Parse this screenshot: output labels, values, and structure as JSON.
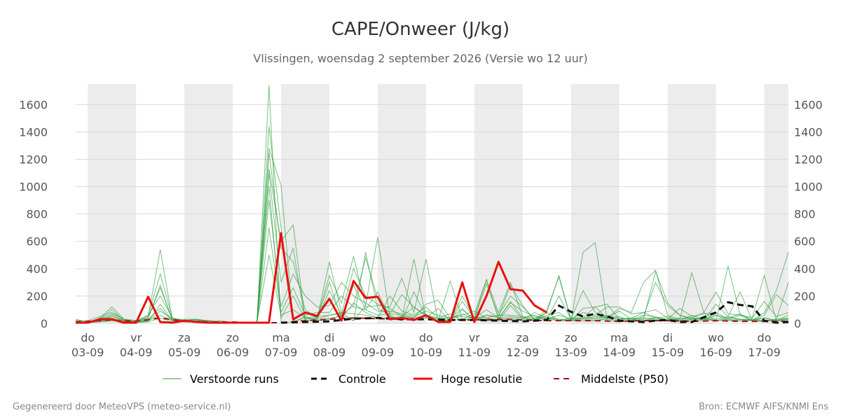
{
  "header": {
    "title": "CAPE/Onweer (J/kg)",
    "subtitle": "Vlissingen, woensdag  2 september 2026 (Versie wo 12 uur)"
  },
  "footer": {
    "left": "Gegenereerd door MeteoVPS (meteo-service.nl)",
    "right": "Bron: ECMWF AIFS/KNMI Ens"
  },
  "colors": {
    "ensemble": "#2e9e3e",
    "control": "#111111",
    "high_res": "#e8110e",
    "median": "#a01010",
    "weekend_band": "#ececec",
    "grid": "#d9d9d9"
  },
  "chart_data": {
    "type": "line",
    "x_unit": "days since 2026-09-03 00:00",
    "xlim": [
      -0.25,
      14.5
    ],
    "ylim": [
      0,
      1750
    ],
    "grid": true,
    "legend_position": "bottom",
    "y_ticks": [
      0,
      200,
      400,
      600,
      800,
      1000,
      1200,
      1400,
      1600
    ],
    "x_ticks": [
      {
        "x": 0,
        "day": "do",
        "date": "03-09"
      },
      {
        "x": 1,
        "day": "vr",
        "date": "04-09"
      },
      {
        "x": 2,
        "day": "za",
        "date": "05-09"
      },
      {
        "x": 3,
        "day": "zo",
        "date": "06-09"
      },
      {
        "x": 4,
        "day": "ma",
        "date": "07-09"
      },
      {
        "x": 5,
        "day": "di",
        "date": "08-09"
      },
      {
        "x": 6,
        "day": "wo",
        "date": "09-09"
      },
      {
        "x": 7,
        "day": "do",
        "date": "10-09"
      },
      {
        "x": 8,
        "day": "vr",
        "date": "11-09"
      },
      {
        "x": 9,
        "day": "za",
        "date": "12-09"
      },
      {
        "x": 10,
        "day": "zo",
        "date": "13-09"
      },
      {
        "x": 11,
        "day": "ma",
        "date": "14-09"
      },
      {
        "x": 12,
        "day": "di",
        "date": "15-09"
      },
      {
        "x": 13,
        "day": "wo",
        "date": "16-09"
      },
      {
        "x": 14,
        "day": "do",
        "date": "17-09"
      }
    ],
    "night_bands": [
      [
        0,
        1
      ],
      [
        2,
        3
      ],
      [
        4,
        5
      ],
      [
        6,
        7
      ],
      [
        8,
        9
      ],
      [
        10,
        11
      ],
      [
        12,
        13
      ],
      [
        14,
        14.5
      ]
    ],
    "legend": [
      {
        "key": "ensemble",
        "label": "Verstoorde runs",
        "style": "thin"
      },
      {
        "key": "control",
        "label": "Controle",
        "style": "dashed"
      },
      {
        "key": "high_res",
        "label": "Hoge resolutie",
        "style": "thick"
      },
      {
        "key": "median",
        "label": "Middelste (P50)",
        "style": "dashed"
      }
    ],
    "high_res": {
      "name": "Hoge resolutie",
      "x": [
        -0.25,
        0,
        0.25,
        0.5,
        0.75,
        1,
        1.25,
        1.5,
        1.75,
        2,
        2.25,
        2.5,
        2.75,
        3,
        3.25,
        3.5,
        3.75,
        4,
        4.25,
        4.5,
        4.75,
        5,
        5.25,
        5.5,
        5.75,
        6,
        6.25,
        6.5,
        6.75,
        7,
        7.25,
        7.5,
        7.75,
        8,
        8.25,
        8.5,
        8.75,
        9,
        9.25,
        9.5
      ],
      "values": [
        5,
        5,
        30,
        30,
        5,
        5,
        195,
        10,
        5,
        20,
        10,
        5,
        5,
        5,
        5,
        5,
        5,
        660,
        30,
        80,
        55,
        180,
        20,
        310,
        185,
        195,
        30,
        40,
        25,
        60,
        10,
        10,
        300,
        10,
        200,
        450,
        250,
        240,
        130,
        80
      ]
    },
    "control": {
      "name": "Controle",
      "x": [
        4,
        4.5,
        5,
        5.5,
        6,
        6.5,
        7,
        7.5,
        8,
        8.5,
        9,
        9.5,
        9.75,
        10,
        10.25,
        10.5,
        10.75,
        11,
        11.25,
        11.5,
        11.75,
        12,
        12.25,
        12.5,
        12.75,
        13,
        13.25,
        13.5,
        13.75,
        14,
        14.25,
        14.5
      ],
      "values": [
        5,
        10,
        15,
        35,
        40,
        30,
        30,
        25,
        25,
        20,
        15,
        25,
        130,
        85,
        50,
        70,
        50,
        20,
        15,
        10,
        20,
        25,
        10,
        10,
        45,
        80,
        155,
        135,
        125,
        20,
        5,
        10
      ]
    },
    "median": {
      "name": "Middelste (P50)",
      "x": [
        -0.25,
        0.5,
        1,
        1.5,
        2,
        2.5,
        3,
        3.5,
        4,
        4.5,
        5,
        5.5,
        6,
        6.5,
        7,
        7.5,
        8,
        8.5,
        9,
        9.5,
        10,
        10.5,
        11,
        11.5,
        12,
        12.5,
        13,
        13.5,
        14,
        14.5
      ],
      "values": [
        10,
        25,
        15,
        40,
        15,
        10,
        10,
        5,
        5,
        20,
        30,
        40,
        35,
        30,
        30,
        25,
        25,
        30,
        25,
        20,
        20,
        20,
        15,
        20,
        20,
        15,
        20,
        15,
        15,
        15
      ]
    },
    "ensemble_runs": {
      "x": [
        -0.25,
        0,
        0.25,
        0.5,
        0.75,
        1,
        1.25,
        1.5,
        1.75,
        2,
        2.25,
        2.5,
        2.75,
        3,
        3.25,
        3.5,
        3.75,
        4,
        4.25,
        4.5,
        4.75,
        5,
        5.25,
        5.5,
        5.75,
        6,
        6.25,
        6.5,
        6.75,
        7,
        7.25,
        7.5,
        7.75,
        8,
        8.25,
        8.5,
        8.75,
        9,
        9.25,
        9.5,
        9.75,
        10,
        10.25,
        10.5,
        10.75,
        11,
        11.25,
        11.5,
        11.75,
        12,
        12.25,
        12.5,
        12.75,
        13,
        13.25,
        13.5,
        13.75,
        14,
        14.25,
        14.5
      ],
      "runs": [
        [
          20,
          5,
          40,
          120,
          30,
          10,
          40,
          280,
          20,
          20,
          30,
          20,
          10,
          5,
          10,
          5,
          1740,
          5,
          10,
          50,
          20,
          30,
          60,
          20,
          520,
          110,
          60,
          20,
          230,
          50,
          30,
          20,
          200,
          40,
          320,
          80,
          300,
          50,
          20,
          80,
          20,
          20,
          520,
          590,
          20,
          10,
          20,
          30,
          380,
          150,
          60,
          40,
          80,
          20,
          420,
          60,
          20,
          10,
          30,
          300
        ],
        [
          10,
          10,
          20,
          60,
          20,
          5,
          50,
          540,
          30,
          20,
          20,
          10,
          5,
          5,
          10,
          5,
          1440,
          700,
          20,
          80,
          40,
          450,
          80,
          20,
          130,
          630,
          50,
          30,
          470,
          40,
          110,
          20,
          100,
          30,
          290,
          60,
          200,
          120,
          30,
          100,
          340,
          20,
          40,
          120,
          40,
          50,
          20,
          50,
          300,
          130,
          60,
          30,
          20,
          140,
          50,
          230,
          20,
          80,
          240,
          520
        ],
        [
          30,
          10,
          30,
          100,
          20,
          10,
          60,
          360,
          40,
          20,
          20,
          20,
          10,
          5,
          10,
          5,
          1280,
          1010,
          10,
          40,
          30,
          240,
          60,
          130,
          480,
          180,
          70,
          210,
          120,
          50,
          20,
          20,
          160,
          40,
          100,
          40,
          150,
          90,
          50,
          30,
          200,
          30,
          80,
          60,
          120,
          120,
          70,
          80,
          100,
          40,
          20,
          60,
          30,
          20,
          40,
          70,
          20,
          60,
          210,
          130
        ],
        [
          20,
          20,
          50,
          80,
          30,
          20,
          40,
          260,
          30,
          30,
          30,
          10,
          20,
          5,
          5,
          5,
          1250,
          550,
          450,
          100,
          40,
          350,
          150,
          490,
          120,
          130,
          120,
          330,
          80,
          470,
          20,
          310,
          30,
          70,
          320,
          30,
          160,
          40,
          30,
          80,
          350,
          30,
          240,
          80,
          40,
          110,
          80,
          300,
          390,
          60,
          30,
          370,
          80,
          230,
          70,
          60,
          40,
          350,
          20,
          60
        ],
        [
          10,
          5,
          30,
          70,
          30,
          20,
          60,
          200,
          40,
          20,
          20,
          20,
          10,
          10,
          5,
          5,
          1130,
          600,
          720,
          20,
          30,
          60,
          70,
          400,
          200,
          140,
          110,
          50,
          40,
          140,
          170,
          40,
          110,
          20,
          60,
          50,
          280,
          130,
          20,
          60,
          80,
          20,
          110,
          120,
          140,
          30,
          40,
          80,
          40,
          30,
          110,
          50,
          70,
          80,
          30,
          60,
          40,
          160,
          50,
          80
        ],
        [
          10,
          10,
          20,
          50,
          20,
          10,
          30,
          110,
          20,
          20,
          30,
          10,
          10,
          5,
          10,
          5,
          1100,
          300,
          550,
          20,
          20,
          40,
          50,
          280,
          100,
          230,
          40,
          50,
          120,
          60,
          40,
          70,
          20,
          50,
          40,
          20,
          130,
          30,
          80,
          40,
          20,
          40,
          40,
          50,
          40,
          90,
          30,
          60,
          50,
          20,
          40,
          40,
          30,
          60,
          20,
          30,
          20,
          20,
          30,
          40
        ],
        [
          20,
          5,
          40,
          40,
          10,
          15,
          20,
          90,
          30,
          20,
          10,
          20,
          5,
          5,
          5,
          5,
          900,
          120,
          360,
          200,
          120,
          130,
          300,
          200,
          150,
          90,
          90,
          70,
          50,
          90,
          60,
          40,
          60,
          90,
          40,
          60,
          60,
          50,
          40,
          50,
          30,
          30,
          40,
          30,
          50,
          30,
          40,
          30,
          40,
          50,
          20,
          30,
          40,
          30,
          50,
          30,
          30,
          40,
          20,
          30
        ],
        [
          10,
          10,
          20,
          30,
          20,
          10,
          20,
          60,
          20,
          20,
          20,
          10,
          10,
          5,
          5,
          5,
          700,
          80,
          260,
          60,
          80,
          80,
          200,
          120,
          100,
          60,
          70,
          60,
          40,
          60,
          30,
          40,
          50,
          40,
          30,
          30,
          40,
          30,
          30,
          40,
          30,
          20,
          30,
          20,
          40,
          30,
          30,
          20,
          40,
          30,
          20,
          30,
          40,
          20,
          30,
          20,
          30,
          20,
          20,
          30
        ],
        [
          5,
          5,
          10,
          20,
          10,
          5,
          10,
          40,
          10,
          10,
          10,
          5,
          5,
          5,
          5,
          5,
          500,
          60,
          100,
          40,
          50,
          60,
          80,
          70,
          60,
          40,
          40,
          40,
          30,
          40,
          20,
          30,
          30,
          30,
          20,
          20,
          30,
          20,
          20,
          30,
          20,
          20,
          20,
          20,
          30,
          20,
          20,
          20,
          30,
          20,
          20,
          20,
          30,
          20,
          20,
          20,
          20,
          20,
          20,
          20
        ],
        [
          15,
          5,
          15,
          25,
          15,
          10,
          15,
          140,
          20,
          15,
          15,
          10,
          10,
          5,
          5,
          5,
          1000,
          40,
          200,
          30,
          40,
          300,
          40,
          150,
          80,
          40,
          200,
          90,
          60,
          120,
          40,
          40,
          70,
          30,
          60,
          40,
          50,
          40,
          60,
          30,
          60,
          30,
          40,
          40,
          60,
          40,
          30,
          40,
          40,
          30,
          30,
          40,
          30,
          60,
          40,
          30,
          20,
          40,
          20,
          40
        ]
      ]
    }
  }
}
